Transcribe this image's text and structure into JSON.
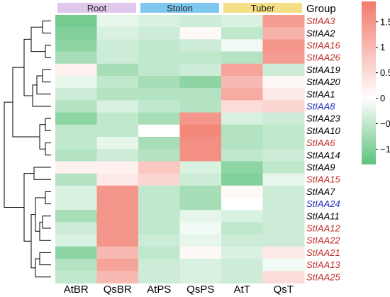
{
  "chart_data": {
    "type": "heatmap",
    "title": "",
    "group_header": "Group",
    "groups": [
      {
        "label": "Root",
        "columns": [
          0,
          1
        ],
        "color": "#e0c8ec"
      },
      {
        "label": "Stolon",
        "columns": [
          2,
          3
        ],
        "color": "#7ec8f0"
      },
      {
        "label": "Tuber",
        "columns": [
          4,
          5
        ],
        "color": "#f5df86"
      }
    ],
    "columns": [
      "AtBR",
      "QsBR",
      "AtPS",
      "QsPS",
      "AtT",
      "QsT"
    ],
    "rows": [
      {
        "label": "StIAA3",
        "color": "#c0302b",
        "values": [
          -1.1,
          -0.2,
          -0.3,
          -0.4,
          -0.3,
          1.4
        ]
      },
      {
        "label": "StIAA2",
        "color": "#000000",
        "values": [
          -1.0,
          -0.3,
          -0.4,
          0.1,
          -0.5,
          1.1
        ]
      },
      {
        "label": "StIAA16",
        "color": "#c0302b",
        "values": [
          -0.9,
          -0.4,
          -0.5,
          -0.4,
          -0.1,
          1.5
        ]
      },
      {
        "label": "StIAA26",
        "color": "#c0302b",
        "values": [
          -0.7,
          -0.4,
          -0.5,
          -0.5,
          -0.6,
          1.4
        ]
      },
      {
        "label": "StIAA19",
        "color": "#000000",
        "values": [
          0.2,
          -0.7,
          -0.5,
          -0.4,
          1.3,
          -0.4
        ]
      },
      {
        "label": "StIAA20",
        "color": "#000000",
        "values": [
          -0.2,
          -0.5,
          -0.7,
          -0.9,
          1.0,
          0.1
        ]
      },
      {
        "label": "StIAA1",
        "color": "#000000",
        "values": [
          -0.4,
          -0.6,
          -0.6,
          -0.6,
          1.2,
          0.3
        ]
      },
      {
        "label": "StIAA8",
        "color": "#1f2fbf",
        "values": [
          -0.6,
          -0.3,
          -0.5,
          -0.6,
          0.5,
          0.6
        ]
      },
      {
        "label": "StIAA23",
        "color": "#000000",
        "values": [
          -0.9,
          -0.5,
          -0.7,
          1.5,
          -0.3,
          -0.4
        ]
      },
      {
        "label": "StIAA10",
        "color": "#000000",
        "values": [
          -0.5,
          -0.5,
          0.0,
          1.7,
          -0.6,
          -0.5
        ]
      },
      {
        "label": "StIAA6",
        "color": "#c0302b",
        "values": [
          -0.5,
          -0.2,
          -0.7,
          1.6,
          -0.6,
          -0.5
        ]
      },
      {
        "label": "StIAA14",
        "color": "#000000",
        "values": [
          -0.6,
          -0.4,
          -0.6,
          1.6,
          -0.5,
          -0.4
        ]
      },
      {
        "label": "StIAA9",
        "color": "#000000",
        "values": [
          0.2,
          0.2,
          0.8,
          -0.3,
          -0.9,
          -0.5
        ]
      },
      {
        "label": "StIAA15",
        "color": "#c0302b",
        "values": [
          -0.6,
          0.3,
          0.6,
          -0.4,
          -1.0,
          -0.2
        ]
      },
      {
        "label": "StIAA7",
        "color": "#000000",
        "values": [
          -0.3,
          1.5,
          -0.5,
          -0.7,
          0.1,
          -0.4
        ]
      },
      {
        "label": "StIAA24",
        "color": "#1f2fbf",
        "values": [
          -0.3,
          1.5,
          -0.5,
          -0.7,
          0.0,
          -0.4
        ]
      },
      {
        "label": "StIAA11",
        "color": "#000000",
        "values": [
          -0.7,
          1.5,
          -0.5,
          -0.2,
          -0.3,
          -0.4
        ]
      },
      {
        "label": "StIAA12",
        "color": "#c0302b",
        "values": [
          -0.4,
          1.5,
          -0.5,
          -0.1,
          -0.5,
          -0.4
        ]
      },
      {
        "label": "StIAA22",
        "color": "#c0302b",
        "values": [
          -0.3,
          1.5,
          -0.4,
          -0.2,
          -0.4,
          -0.4
        ]
      },
      {
        "label": "StIAA21",
        "color": "#c0302b",
        "values": [
          -0.9,
          1.0,
          -0.5,
          0.1,
          -0.3,
          0.3
        ]
      },
      {
        "label": "StIAA13",
        "color": "#c0302b",
        "values": [
          -0.6,
          1.3,
          -0.4,
          -0.3,
          -0.4,
          -0.1
        ]
      },
      {
        "label": "StIAA25",
        "color": "#c0302b",
        "values": [
          -0.5,
          1.0,
          -0.4,
          -0.3,
          -0.4,
          0.5
        ]
      }
    ],
    "colorscale": {
      "min": -1.3,
      "mid": 0,
      "max": 1.9,
      "low_color": "#5cc27c",
      "mid_color": "#ffffff",
      "high_color": "#f27a6c",
      "ticks": [
        1.5,
        1,
        0.5,
        0,
        -0.5,
        -1
      ],
      "tick_labels": [
        "1.5",
        "1",
        "0.5",
        "0",
        "−0.5",
        "−1"
      ]
    },
    "row_dendrogram": true,
    "grid": false,
    "legend_position": "right"
  }
}
